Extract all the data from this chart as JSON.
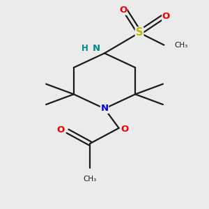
{
  "bg_color": "#ebebeb",
  "bond_color": "#1a1a1a",
  "N_color": "#0000ee",
  "O_color": "#ee0000",
  "S_color": "#bbbb00",
  "NH_color": "#008888",
  "figsize": [
    3.0,
    3.0
  ],
  "dpi": 100,
  "xlim": [
    0,
    10
  ],
  "ylim": [
    0,
    10
  ],
  "lw": 1.6,
  "fs": 8.5
}
